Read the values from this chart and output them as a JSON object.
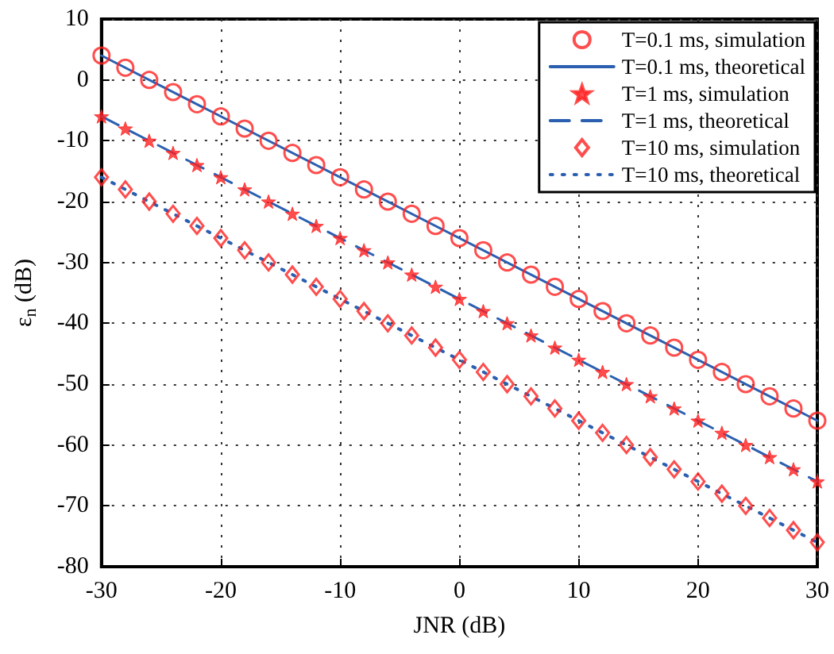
{
  "chart_data": {
    "type": "scatter",
    "xlabel": "JNR (dB)",
    "ylabel": "ε$_{n}$ (dB)",
    "xlim": [
      -30,
      30
    ],
    "ylim": [
      -80,
      10
    ],
    "xticks": [
      -30,
      -20,
      -10,
      0,
      10,
      20,
      30
    ],
    "yticks": [
      -80,
      -70,
      -60,
      -50,
      -40,
      -30,
      -20,
      -10,
      0,
      10
    ],
    "grid": true,
    "legend": "top right",
    "series": [
      {
        "name": "T=0.1 ms, simulation",
        "marker": "circle",
        "color": "#ff2020",
        "x": [
          -30,
          -28,
          -26,
          -24,
          -22,
          -20,
          -18,
          -16,
          -14,
          -12,
          -10,
          -8,
          -6,
          -4,
          -2,
          0,
          2,
          4,
          6,
          8,
          10,
          12,
          14,
          16,
          18,
          20,
          22,
          24,
          26,
          28,
          30
        ],
        "values": [
          4,
          2,
          0,
          -2,
          -4,
          -6,
          -8,
          -10,
          -12,
          -14,
          -16,
          -18,
          -20,
          -22,
          -24,
          -26,
          -28,
          -30,
          -32,
          -34,
          -36,
          -38,
          -40,
          -42,
          -44,
          -46,
          -48,
          -50,
          -52,
          -54,
          -56
        ]
      },
      {
        "name": "T=0.1 ms, theoretical",
        "type": "line",
        "line_style": "solid",
        "color": "#2b5fb0",
        "x": [
          -30,
          30
        ],
        "values": [
          4,
          -56
        ]
      },
      {
        "name": "T=1 ms, simulation",
        "marker": "star",
        "color": "#ff2020",
        "x": [
          -30,
          -28,
          -26,
          -24,
          -22,
          -20,
          -18,
          -16,
          -14,
          -12,
          -10,
          -8,
          -6,
          -4,
          -2,
          0,
          2,
          4,
          6,
          8,
          10,
          12,
          14,
          16,
          18,
          20,
          22,
          24,
          26,
          28,
          30
        ],
        "values": [
          -6,
          -8,
          -10,
          -12,
          -14,
          -16,
          -18,
          -20,
          -22,
          -24,
          -26,
          -28,
          -30,
          -32,
          -34,
          -36,
          -38,
          -40,
          -42,
          -44,
          -46,
          -48,
          -50,
          -52,
          -54,
          -56,
          -58,
          -60,
          -62,
          -64,
          -66
        ]
      },
      {
        "name": "T=1 ms, theoretical",
        "type": "line",
        "line_style": "dashed",
        "color": "#2b5fb0",
        "x": [
          -30,
          30
        ],
        "values": [
          -6,
          -66
        ]
      },
      {
        "name": "T=10 ms, simulation",
        "marker": "diamond",
        "color": "#ff2020",
        "x": [
          -30,
          -28,
          -26,
          -24,
          -22,
          -20,
          -18,
          -16,
          -14,
          -12,
          -10,
          -8,
          -6,
          -4,
          -2,
          0,
          2,
          4,
          6,
          8,
          10,
          12,
          14,
          16,
          18,
          20,
          22,
          24,
          26,
          28,
          30
        ],
        "values": [
          -16,
          -18,
          -20,
          -22,
          -24,
          -26,
          -28,
          -30,
          -32,
          -34,
          -36,
          -38,
          -40,
          -42,
          -44,
          -46,
          -48,
          -50,
          -52,
          -54,
          -56,
          -58,
          -60,
          -62,
          -64,
          -66,
          -68,
          -70,
          -72,
          -74,
          -76
        ]
      },
      {
        "name": "T=10 ms, theoretical",
        "type": "line",
        "line_style": "dotted",
        "color": "#2b5fb0",
        "x": [
          -30,
          30
        ],
        "values": [
          -16,
          -76
        ]
      }
    ]
  }
}
